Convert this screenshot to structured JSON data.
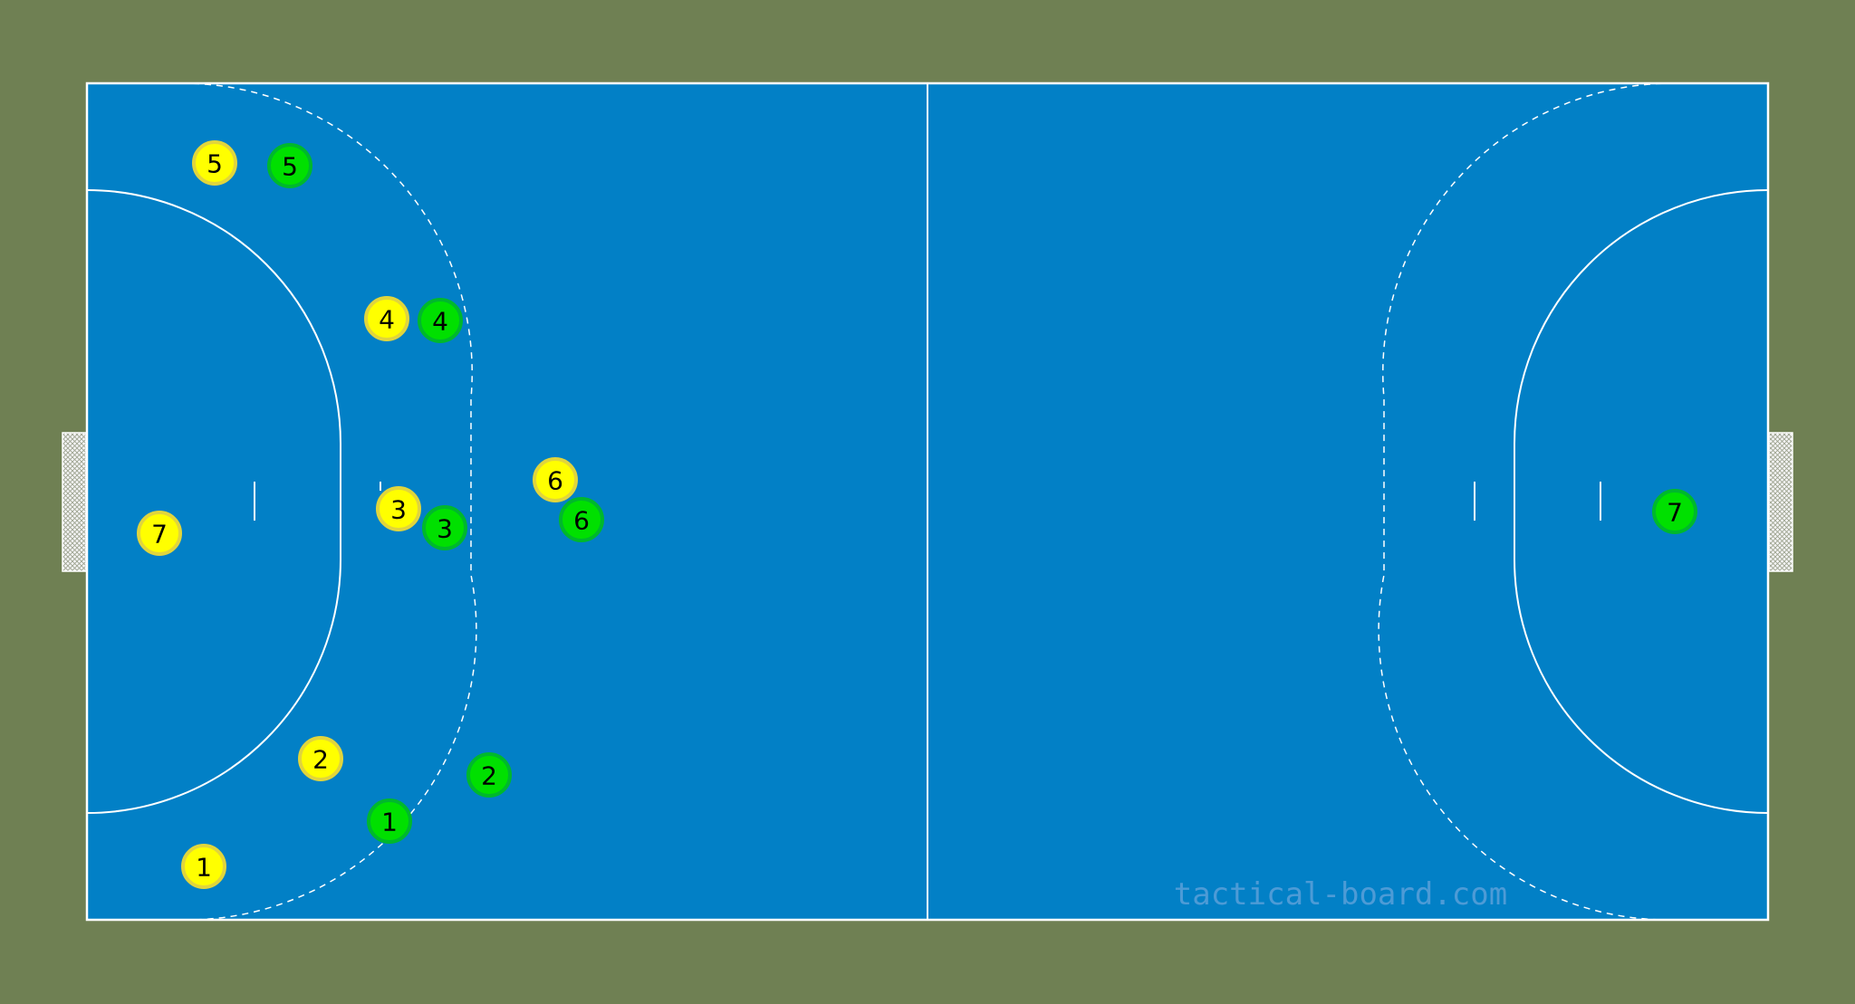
{
  "watermark": "tactical-board.com",
  "colors": {
    "background": "#6f8053",
    "court": "#0280c6",
    "lines": "#ffffff",
    "team_yellow_fill": "#ffff00",
    "team_yellow_ring": "#e1d53c",
    "team_green_fill": "#00e000",
    "team_green_ring": "#00b82c"
  },
  "players": [
    {
      "team": "yellow",
      "label": "5"
    },
    {
      "team": "green",
      "label": "5"
    },
    {
      "team": "yellow",
      "label": "4"
    },
    {
      "team": "green",
      "label": "4"
    },
    {
      "team": "yellow",
      "label": "6"
    },
    {
      "team": "green",
      "label": "6"
    },
    {
      "team": "yellow",
      "label": "3"
    },
    {
      "team": "green",
      "label": "3"
    },
    {
      "team": "yellow",
      "label": "7"
    },
    {
      "team": "green",
      "label": "7"
    },
    {
      "team": "yellow",
      "label": "2"
    },
    {
      "team": "green",
      "label": "2"
    },
    {
      "team": "green",
      "label": "1"
    },
    {
      "team": "yellow",
      "label": "1"
    }
  ]
}
